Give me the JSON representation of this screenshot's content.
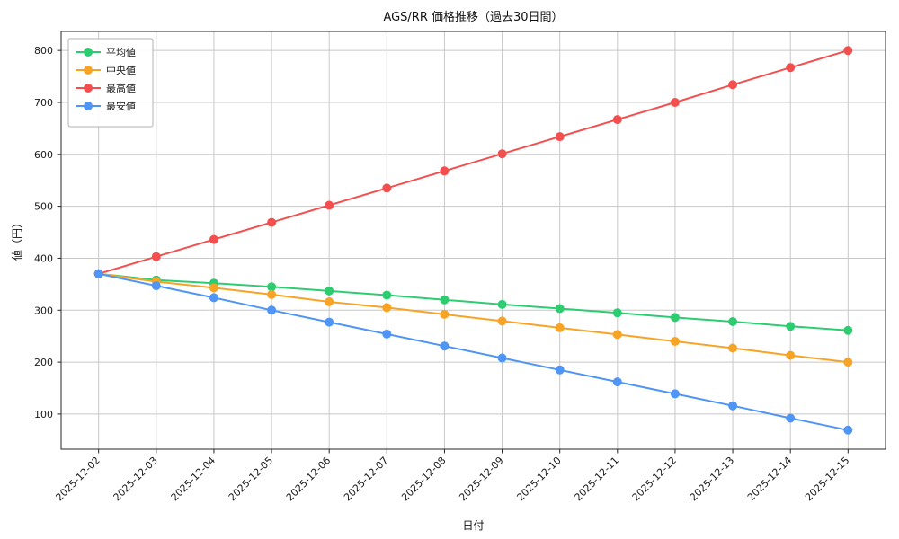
{
  "chart_data": {
    "type": "line",
    "title": "AGS/RR 価格推移（過去30日間）",
    "xlabel": "日付",
    "ylabel": "値（円）",
    "categories": [
      "2025-12-02",
      "2025-12-03",
      "2025-12-04",
      "2025-12-05",
      "2025-12-06",
      "2025-12-07",
      "2025-12-08",
      "2025-12-09",
      "2025-12-10",
      "2025-12-11",
      "2025-12-12",
      "2025-12-13",
      "2025-12-14",
      "2025-12-15"
    ],
    "series": [
      {
        "id": "average",
        "name": "平均値",
        "color": "#2ecc71",
        "values": [
          370,
          358,
          352,
          345,
          337,
          329,
          320,
          311,
          303,
          295,
          286,
          278,
          269,
          261
        ]
      },
      {
        "id": "median",
        "name": "中央値",
        "color": "#f7a426",
        "values": [
          370,
          355,
          343,
          330,
          316,
          305,
          292,
          279,
          266,
          253,
          240,
          227,
          213,
          200
        ]
      },
      {
        "id": "max",
        "name": "最高値",
        "color": "#f44f4f",
        "values": [
          370,
          403,
          436,
          469,
          502,
          535,
          568,
          601,
          634,
          667,
          700,
          734,
          767,
          800
        ]
      },
      {
        "id": "min",
        "name": "最安値",
        "color": "#4f95f5",
        "values": [
          370,
          347,
          324,
          300,
          277,
          254,
          231,
          208,
          185,
          162,
          139,
          116,
          92,
          69
        ]
      }
    ],
    "yticks": [
      100,
      200,
      300,
      400,
      500,
      600,
      700,
      800
    ],
    "ylim": [
      32.4,
      836.6
    ],
    "grid": true,
    "legend_position": "upper left",
    "colors": {
      "grid": "#c8c8c8",
      "axis": "#262626",
      "background": "#ffffff",
      "legend_border": "#b3b3b3"
    }
  }
}
